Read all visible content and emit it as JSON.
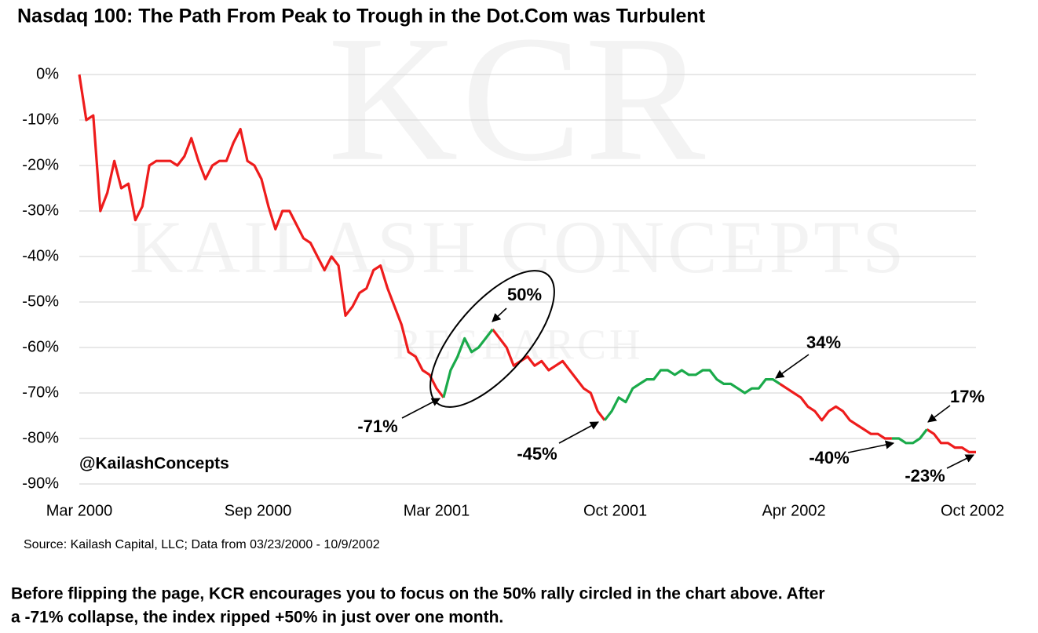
{
  "chart_data": {
    "type": "line",
    "title": "Nasdaq 100: The Path From Peak to Trough in the Dot.Com was Turbulent",
    "watermark": [
      "KCR",
      "KAILASH CONCEPTS",
      "RESEARCH"
    ],
    "handle": "@KailashConcepts",
    "source": "Source: Kailash Capital, LLC; Data from 03/23/2000 - 10/9/2002",
    "note": [
      "Before flipping the page, KCR encourages you to focus on the 50% rally circled in the chart above.  After",
      "a -71% collapse, the index ripped +50% in just over one month."
    ],
    "annotations": [
      "50%",
      "-71%",
      "-45%",
      "34%",
      "-40%",
      "17%",
      "-23%"
    ],
    "xlim": [
      2000.22,
      2002.78
    ],
    "xticks": [
      {
        "value": 2000.22,
        "label": "Mar 2000"
      },
      {
        "value": 2000.73,
        "label": "Sep 2000"
      },
      {
        "value": 2001.24,
        "label": "Mar 2001"
      },
      {
        "value": 2001.75,
        "label": "Oct 2001"
      },
      {
        "value": 2002.26,
        "label": "Apr 2002"
      },
      {
        "value": 2002.77,
        "label": "Oct 2002"
      }
    ],
    "ylim": [
      -90,
      0
    ],
    "yticks": [
      {
        "value": 0,
        "label": "0%"
      },
      {
        "value": -10,
        "label": "-10%"
      },
      {
        "value": -20,
        "label": "-20%"
      },
      {
        "value": -30,
        "label": "-30%"
      },
      {
        "value": -40,
        "label": "-40%"
      },
      {
        "value": -50,
        "label": "-50%"
      },
      {
        "value": -60,
        "label": "-60%"
      },
      {
        "value": -70,
        "label": "-70%"
      },
      {
        "value": -80,
        "label": "-80%"
      },
      {
        "value": -90,
        "label": "-90%"
      }
    ],
    "grid": true,
    "x": [
      2000.22,
      2000.24,
      2000.26,
      2000.28,
      2000.3,
      2000.32,
      2000.34,
      2000.36,
      2000.38,
      2000.4,
      2000.42,
      2000.44,
      2000.46,
      2000.48,
      2000.5,
      2000.52,
      2000.54,
      2000.56,
      2000.58,
      2000.6,
      2000.62,
      2000.64,
      2000.66,
      2000.68,
      2000.7,
      2000.72,
      2000.74,
      2000.76,
      2000.78,
      2000.8,
      2000.82,
      2000.84,
      2000.86,
      2000.88,
      2000.9,
      2000.92,
      2000.94,
      2000.96,
      2000.98,
      2001.0,
      2001.02,
      2001.04,
      2001.06,
      2001.08,
      2001.1,
      2001.12,
      2001.14,
      2001.16,
      2001.18,
      2001.2,
      2001.22,
      2001.24,
      2001.26,
      2001.28,
      2001.3,
      2001.32,
      2001.34,
      2001.36,
      2001.38,
      2001.4,
      2001.42,
      2001.44,
      2001.46,
      2001.48,
      2001.5,
      2001.52,
      2001.54,
      2001.56,
      2001.58,
      2001.6,
      2001.62,
      2001.64,
      2001.66,
      2001.68,
      2001.7,
      2001.72,
      2001.74,
      2001.76,
      2001.78,
      2001.8,
      2001.82,
      2001.84,
      2001.86,
      2001.88,
      2001.9,
      2001.92,
      2001.94,
      2001.96,
      2001.98,
      2002.0,
      2002.02,
      2002.04,
      2002.06,
      2002.08,
      2002.1,
      2002.12,
      2002.14,
      2002.16,
      2002.18,
      2002.2,
      2002.22,
      2002.24,
      2002.26,
      2002.28,
      2002.3,
      2002.32,
      2002.34,
      2002.36,
      2002.38,
      2002.4,
      2002.42,
      2002.44,
      2002.46,
      2002.48,
      2002.5,
      2002.52,
      2002.54,
      2002.56,
      2002.58,
      2002.6,
      2002.62,
      2002.64,
      2002.66,
      2002.68,
      2002.7,
      2002.72,
      2002.74,
      2002.76,
      2002.78
    ],
    "series": [
      {
        "color": "#ee1c1c",
        "values": [
          0,
          -10,
          -9,
          -30,
          -26,
          -19,
          -25,
          -24,
          -32,
          -29,
          -20,
          -19,
          -19,
          -19,
          -20,
          -18,
          -14,
          -19,
          -23,
          -20,
          -19,
          -19,
          -15,
          -12,
          -19,
          -20,
          -23,
          -29,
          -34,
          -30,
          -30,
          -33,
          -36,
          -37,
          -40,
          -43,
          -40,
          -42,
          -53,
          -51,
          -48,
          -47,
          -43,
          -42,
          -47,
          -51,
          -55,
          -61,
          -62,
          -65,
          -66,
          -69,
          -71,
          null,
          null,
          null,
          null,
          null,
          null,
          -56,
          -58,
          -60,
          -64,
          -63,
          -62,
          -64,
          -63,
          -65,
          -64,
          -63,
          -65,
          -67,
          -69,
          -70,
          -74,
          -76,
          null,
          null,
          null,
          null,
          null,
          null,
          null,
          null,
          null,
          null,
          null,
          null,
          null,
          null,
          null,
          null,
          null,
          null,
          null,
          null,
          null,
          null,
          null,
          null,
          -68,
          -69,
          -70,
          -71,
          -73,
          -74,
          -76,
          -74,
          -73,
          -74,
          -76,
          -77,
          -78,
          -79,
          -79,
          -80,
          -80,
          null,
          null,
          null,
          null,
          -78,
          -79,
          -81,
          -81,
          -82,
          -82,
          -83,
          -83
        ]
      },
      {
        "color": "#1aaa4a",
        "values": [
          null,
          null,
          null,
          null,
          null,
          null,
          null,
          null,
          null,
          null,
          null,
          null,
          null,
          null,
          null,
          null,
          null,
          null,
          null,
          null,
          null,
          null,
          null,
          null,
          null,
          null,
          null,
          null,
          null,
          null,
          null,
          null,
          null,
          null,
          null,
          null,
          null,
          null,
          null,
          null,
          null,
          null,
          null,
          null,
          null,
          null,
          null,
          null,
          null,
          null,
          null,
          null,
          -71,
          -65,
          -62,
          -58,
          -61,
          -60,
          -58,
          -56,
          null,
          null,
          null,
          null,
          null,
          null,
          null,
          null,
          null,
          null,
          null,
          null,
          null,
          null,
          null,
          -76,
          -74,
          -71,
          -72,
          -69,
          -68,
          -67,
          -67,
          -65,
          -65,
          -66,
          -65,
          -66,
          -66,
          -65,
          -65,
          -67,
          -68,
          -68,
          -69,
          -70,
          -69,
          -69,
          -67,
          -67,
          -68,
          null,
          null,
          null,
          null,
          null,
          null,
          null,
          null,
          null,
          null,
          null,
          null,
          null,
          null,
          null,
          -80,
          -80,
          -81,
          -81,
          -80,
          -78,
          null,
          null,
          null,
          null,
          null,
          null,
          null
        ]
      }
    ]
  }
}
